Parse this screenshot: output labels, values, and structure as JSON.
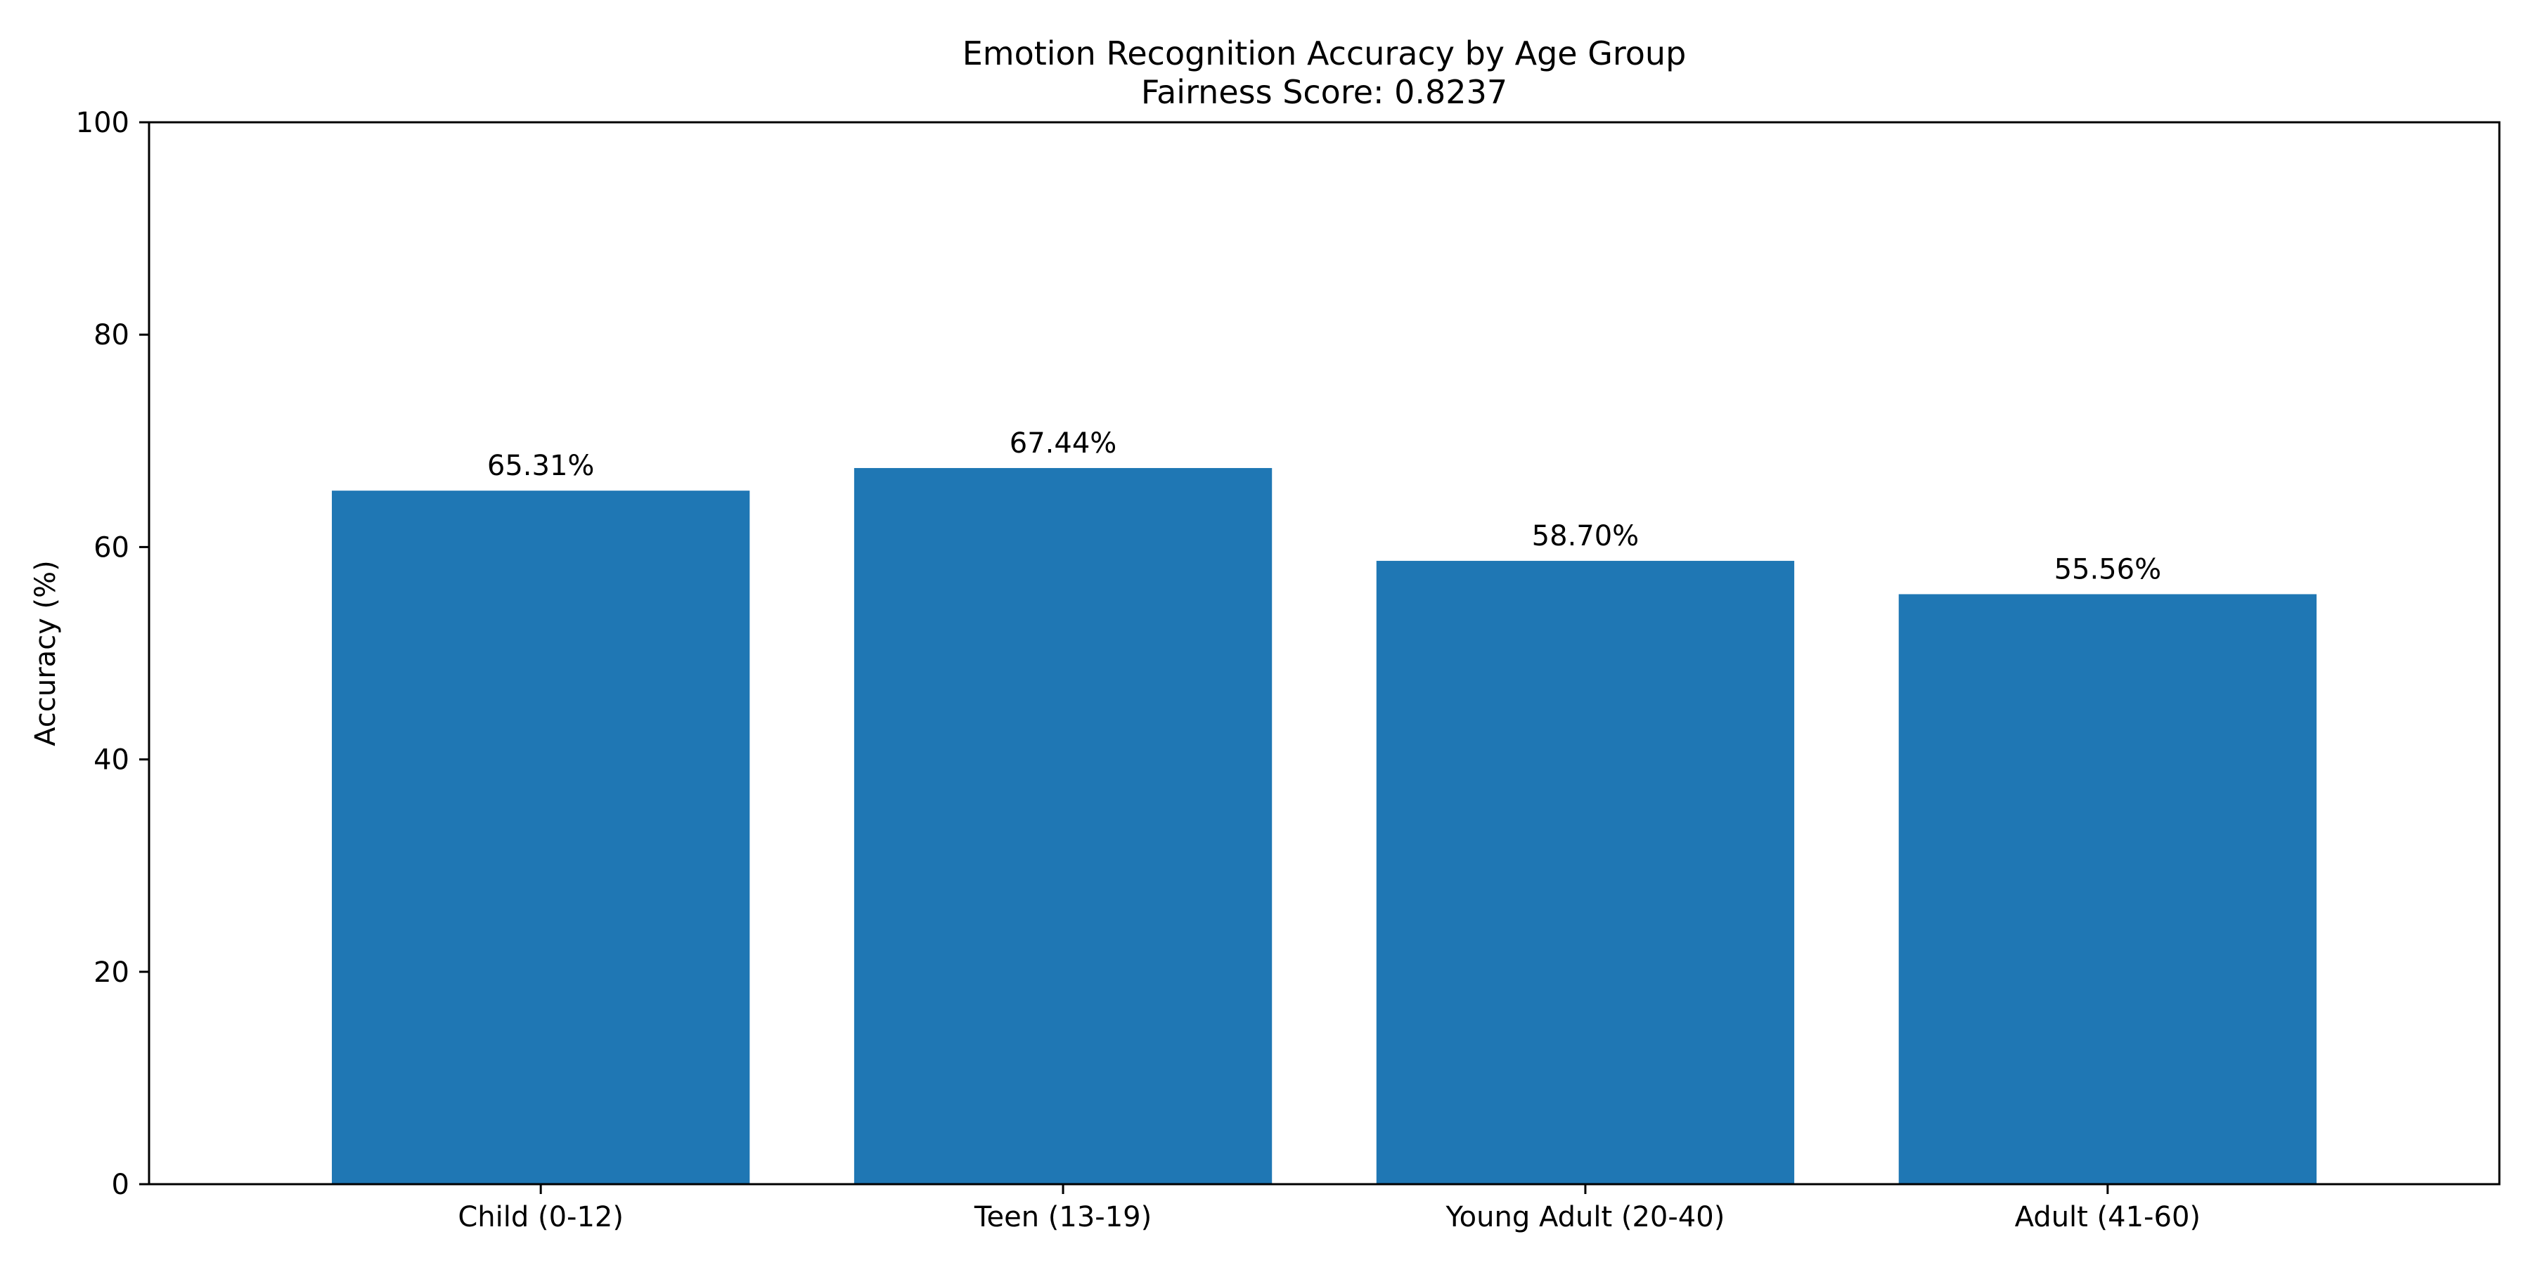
{
  "chart_data": {
    "type": "bar",
    "title": "Emotion Recognition Accuracy by Age Group",
    "subtitle": "Fairness Score: 0.8237",
    "xlabel": "",
    "ylabel": "Accuracy (%)",
    "ylim": [
      0,
      100
    ],
    "yticks": [
      0,
      20,
      40,
      60,
      80,
      100
    ],
    "grid": false,
    "legend": "none",
    "categories": [
      "Child (0-12)",
      "Teen (13-19)",
      "Young Adult (20-40)",
      "Adult (41-60)"
    ],
    "values": [
      65.31,
      67.44,
      58.7,
      55.56
    ],
    "data_labels": [
      "65.31%",
      "67.44%",
      "58.70%",
      "55.56%"
    ],
    "bar_color": "#1f77b4"
  }
}
